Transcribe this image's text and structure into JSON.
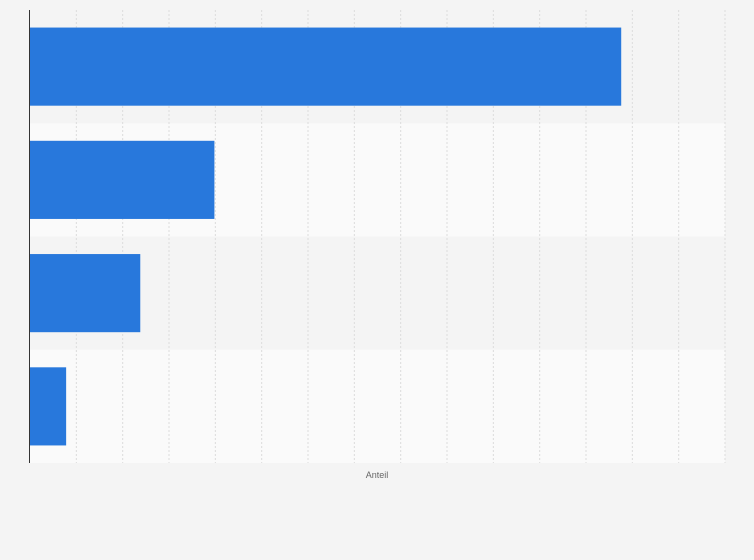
{
  "chart_data": {
    "type": "bar",
    "orientation": "horizontal",
    "categories": [
      "",
      "",
      "",
      ""
    ],
    "values": [
      63.8,
      19.9,
      11.9,
      3.9
    ],
    "xlabel": "Anteil",
    "ylabel": "",
    "xlim": [
      0,
      75
    ],
    "grid": true,
    "legend": "none",
    "bar_color": "#2878dc"
  }
}
